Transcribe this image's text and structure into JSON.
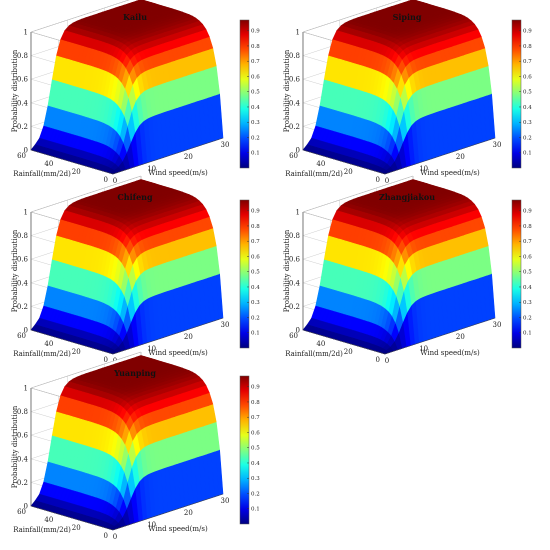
{
  "colormap": "jet",
  "chart_data": [
    {
      "type": "surface3d",
      "title": "Kailu",
      "xlabel": "Wind speed(m/s)",
      "ylabel": "Rainfall(mm/2d)",
      "zlabel": "Probability distribution",
      "xticks": [
        0,
        10,
        20,
        30
      ],
      "yticks": [
        0,
        20,
        40,
        60
      ],
      "zticks": [
        0,
        0.2,
        0.4,
        0.6,
        0.8,
        1
      ],
      "xlim": [
        0,
        30
      ],
      "ylim": [
        0,
        60
      ],
      "zlim": [
        0,
        1
      ],
      "colorbar_ticks": [
        0.1,
        0.2,
        0.3,
        0.4,
        0.5,
        0.6,
        0.7,
        0.8,
        0.9
      ],
      "colorbar_range": [
        0,
        0.97
      ]
    },
    {
      "type": "surface3d",
      "title": "Siping",
      "xlabel": "Wind speed(m/s)",
      "ylabel": "Rainfall(mm/2d)",
      "zlabel": "Probability distribution",
      "xticks": [
        0,
        10,
        20,
        30
      ],
      "yticks": [
        0,
        20,
        40,
        60
      ],
      "zticks": [
        0,
        0.2,
        0.4,
        0.6,
        0.8,
        1
      ],
      "xlim": [
        0,
        30
      ],
      "ylim": [
        0,
        60
      ],
      "zlim": [
        0,
        1
      ],
      "colorbar_ticks": [
        0.1,
        0.2,
        0.3,
        0.4,
        0.5,
        0.6,
        0.7,
        0.8,
        0.9
      ],
      "colorbar_range": [
        0,
        0.97
      ]
    },
    {
      "type": "surface3d",
      "title": "Chifeng",
      "xlabel": "Wind speed(m/s)",
      "ylabel": "Rainfall(mm/2d)",
      "zlabel": "Probability distribution",
      "xticks": [
        0,
        10,
        20,
        30
      ],
      "yticks": [
        0,
        20,
        40,
        60
      ],
      "zticks": [
        0,
        0.2,
        0.4,
        0.6,
        0.8,
        1
      ],
      "xlim": [
        0,
        30
      ],
      "ylim": [
        0,
        60
      ],
      "zlim": [
        0,
        1
      ],
      "colorbar_ticks": [
        0.1,
        0.2,
        0.3,
        0.4,
        0.5,
        0.6,
        0.7,
        0.8,
        0.9
      ],
      "colorbar_range": [
        0,
        0.97
      ]
    },
    {
      "type": "surface3d",
      "title": "Zhangjiakou",
      "xlabel": "Wind speed(m/s)",
      "ylabel": "Rainfall(mm/2d)",
      "zlabel": "Probability distribution",
      "xticks": [
        0,
        10,
        20,
        30
      ],
      "yticks": [
        0,
        20,
        40,
        60
      ],
      "zticks": [
        0,
        0.2,
        0.4,
        0.6,
        0.8,
        1
      ],
      "xlim": [
        0,
        30
      ],
      "ylim": [
        0,
        60
      ],
      "zlim": [
        0,
        1
      ],
      "colorbar_ticks": [
        0.1,
        0.2,
        0.3,
        0.4,
        0.5,
        0.6,
        0.7,
        0.8,
        0.9
      ],
      "colorbar_range": [
        0,
        0.97
      ]
    },
    {
      "type": "surface3d",
      "title": "Yuanping",
      "xlabel": "Wind speed(m/s)",
      "ylabel": "Rainfall(mm/2d)",
      "zlabel": "Probability distribution",
      "xticks": [
        0,
        10,
        20,
        30
      ],
      "yticks": [
        0,
        20,
        40,
        60
      ],
      "zticks": [
        0,
        0.2,
        0.4,
        0.6,
        0.8,
        1
      ],
      "xlim": [
        0,
        30
      ],
      "ylim": [
        0,
        60
      ],
      "zlim": [
        0,
        1
      ],
      "colorbar_ticks": [
        0.1,
        0.2,
        0.3,
        0.4,
        0.5,
        0.6,
        0.7,
        0.8,
        0.9
      ],
      "colorbar_range": [
        0,
        0.97
      ]
    }
  ]
}
